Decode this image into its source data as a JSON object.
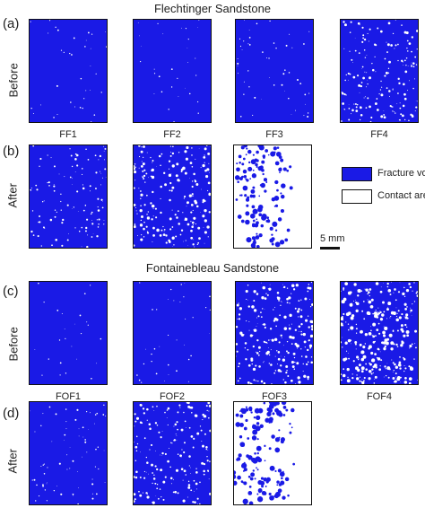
{
  "colors": {
    "void": "#1a1ae6",
    "contact": "#ffffff",
    "border": "#111111"
  },
  "section1": {
    "title": "Flechtinger Sandstone",
    "tag_a": "(a)",
    "tag_b": "(b)",
    "row_before": "Before",
    "row_after": "After",
    "before_labels": [
      "FF1",
      "FF2",
      "FF3",
      "FF4"
    ]
  },
  "section2": {
    "title": "Fontainebleau Sandstone",
    "tag_c": "(c)",
    "tag_d": "(d)",
    "row_before": "Before",
    "row_after": "After",
    "before_labels": [
      "FOF1",
      "FOF2",
      "FOF3",
      "FOF4"
    ]
  },
  "legend": {
    "void_label": "Fracture void",
    "contact_label": "Contact area"
  },
  "scale": {
    "label": "5 mm"
  }
}
